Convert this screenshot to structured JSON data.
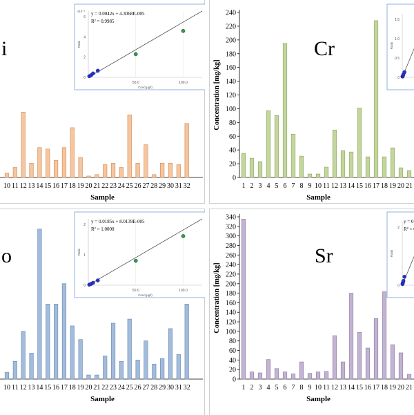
{
  "chart_data": [
    {
      "type": "bar",
      "id": "tl",
      "element_label": "i",
      "xlabel": "Sample",
      "bar_color": "#f5c6a0",
      "bar_edge": "#d98e55",
      "ylim": [
        0,
        12
      ],
      "categories": [
        "10",
        "11",
        "12",
        "13",
        "14",
        "15",
        "16",
        "17",
        "18",
        "19",
        "20",
        "21",
        "22",
        "23",
        "24",
        "25",
        "26",
        "27",
        "28",
        "29",
        "30",
        "31",
        "32"
      ],
      "values": [
        0.3,
        0.7,
        4.6,
        1.0,
        2.1,
        2.0,
        1.2,
        2.1,
        3.5,
        1.4,
        0.1,
        0.2,
        0.9,
        1.0,
        0.7,
        4.4,
        1.0,
        2.3,
        0.2,
        1.0,
        1.0,
        0.9,
        3.8
      ],
      "inset": {
        "equation": "y = 0.0042x + 4.3068E-005",
        "r2": "R² = 0.9985",
        "exp_label": "x10⁻¹",
        "y_axis_label": "Ratio",
        "x_axis_label": "Conc(µg/l)",
        "y_ticks": [
          "0",
          "2",
          "4",
          "6"
        ],
        "x_ticks": [
          "50.0",
          "100.0"
        ],
        "xlim": [
          0,
          120
        ],
        "ylim": [
          0,
          0.6
        ],
        "points": [
          {
            "x": 1,
            "y": 0.01,
            "color": "#2633c9"
          },
          {
            "x": 3,
            "y": 0.02,
            "color": "#2633c9"
          },
          {
            "x": 5,
            "y": 0.035,
            "color": "#2633c9"
          },
          {
            "x": 10,
            "y": 0.06,
            "color": "#2633c9"
          },
          {
            "x": 50,
            "y": 0.21,
            "color": "#2e9e3e"
          },
          {
            "x": 100,
            "y": 0.42,
            "color": "#2e9e3e"
          }
        ]
      }
    },
    {
      "type": "bar",
      "id": "tr",
      "element_label": "Cr",
      "xlabel": "Sample",
      "ylabel": "Concentration [mg/kg]",
      "bar_color": "#c3d69b",
      "bar_edge": "#93a96a",
      "ylim": [
        0,
        240
      ],
      "y_ticks": [
        0,
        20,
        40,
        60,
        80,
        100,
        120,
        140,
        160,
        180,
        200,
        220,
        240
      ],
      "categories": [
        "1",
        "2",
        "3",
        "4",
        "5",
        "6",
        "7",
        "8",
        "9",
        "10",
        "11",
        "12",
        "13",
        "14",
        "15",
        "16",
        "17",
        "18",
        "19",
        "20",
        "21"
      ],
      "values": [
        35,
        28,
        23,
        97,
        90,
        195,
        63,
        31,
        5,
        5,
        15,
        69,
        39,
        37,
        101,
        30,
        228,
        30,
        43,
        14,
        10
      ],
      "inset": {
        "y_axis_label": "Ratio",
        "y_ticks": [
          "0",
          "0.5",
          "1.0",
          "1.5"
        ],
        "xlim": [
          0,
          120
        ],
        "ylim": [
          0,
          1.6
        ],
        "points": [
          {
            "x": 1,
            "y": 0.02,
            "color": "#2633c9"
          },
          {
            "x": 3,
            "y": 0.04,
            "color": "#2633c9"
          },
          {
            "x": 5,
            "y": 0.07,
            "color": "#2633c9"
          },
          {
            "x": 10,
            "y": 0.13,
            "color": "#2633c9"
          }
        ]
      }
    },
    {
      "type": "bar",
      "id": "bl",
      "element_label": "o",
      "xlabel": "Sample",
      "bar_color": "#a4bcdc",
      "bar_edge": "#6f8fb8",
      "ylim": [
        0,
        12
      ],
      "categories": [
        "10",
        "11",
        "12",
        "13",
        "14",
        "15",
        "16",
        "17",
        "18",
        "19",
        "20",
        "21",
        "22",
        "23",
        "24",
        "25",
        "26",
        "27",
        "28",
        "29",
        "30",
        "31",
        "32"
      ],
      "values": [
        0.5,
        1.3,
        3.5,
        1.9,
        11.0,
        5.5,
        5.5,
        7.0,
        3.9,
        2.9,
        0.3,
        0.3,
        1.7,
        4.1,
        1.3,
        4.4,
        1.4,
        2.8,
        1.1,
        1.5,
        3.7,
        1.8,
        5.5
      ],
      "inset": {
        "equation": "y = 0.0185x + 8.0139E-005",
        "r2": "R² = 1.0000",
        "y_axis_label": "Ratio",
        "x_axis_label": "Conc(µg/l)",
        "y_ticks": [
          "0",
          "1",
          "2"
        ],
        "x_ticks": [
          "50.0",
          "100.0"
        ],
        "xlim": [
          0,
          120
        ],
        "ylim": [
          0,
          2.5
        ],
        "points": [
          {
            "x": 1,
            "y": 0.02,
            "color": "#2633c9"
          },
          {
            "x": 3,
            "y": 0.05,
            "color": "#2633c9"
          },
          {
            "x": 5,
            "y": 0.09,
            "color": "#2633c9"
          },
          {
            "x": 10,
            "y": 0.18,
            "color": "#2633c9"
          },
          {
            "x": 50,
            "y": 0.92,
            "color": "#2e9e3e"
          },
          {
            "x": 100,
            "y": 1.85,
            "color": "#2e9e3e"
          }
        ]
      }
    },
    {
      "type": "bar",
      "id": "br",
      "element_label": "Sr",
      "xlabel": "Sample",
      "ylabel": "Concentration [mg/kg]",
      "bar_color": "#c2b3d3",
      "bar_edge": "#9384a8",
      "ylim": [
        0,
        340
      ],
      "y_ticks": [
        0,
        20,
        40,
        60,
        80,
        100,
        120,
        140,
        160,
        180,
        200,
        220,
        240,
        260,
        280,
        300,
        320,
        340
      ],
      "categories": [
        "1",
        "2",
        "3",
        "4",
        "5",
        "6",
        "7",
        "8",
        "9",
        "10",
        "11",
        "12",
        "13",
        "14",
        "15",
        "16",
        "17",
        "18",
        "19",
        "20",
        "21"
      ],
      "values": [
        335,
        15,
        13,
        41,
        22,
        15,
        11,
        36,
        12,
        15,
        16,
        91,
        36,
        180,
        98,
        65,
        127,
        183,
        72,
        55,
        10
      ],
      "inset": {
        "equation": "y = 0",
        "r2": "R² = 0",
        "y_axis_label": "Ratio",
        "y_ticks": [
          "0",
          "2"
        ],
        "xlim": [
          0,
          120
        ],
        "ylim": [
          0,
          3
        ],
        "points": [
          {
            "x": 1,
            "y": 0.05,
            "color": "#2633c9"
          },
          {
            "x": 3,
            "y": 0.12,
            "color": "#2633c9"
          },
          {
            "x": 5,
            "y": 0.2,
            "color": "#2633c9"
          },
          {
            "x": 10,
            "y": 0.4,
            "color": "#2633c9"
          }
        ]
      }
    }
  ]
}
